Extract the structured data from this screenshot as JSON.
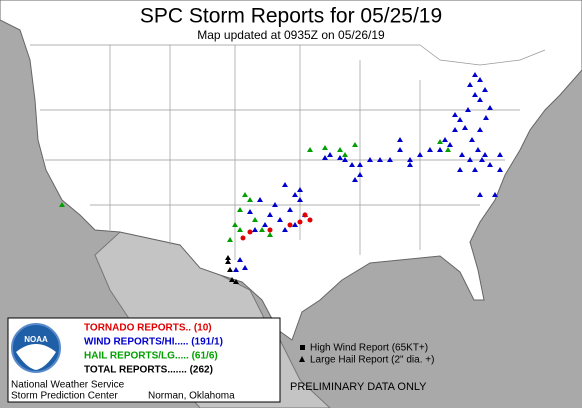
{
  "header": {
    "title": "SPC Storm Reports for 05/25/19",
    "subtitle": "Map updated at 0935Z on 05/26/19"
  },
  "legend": {
    "tornado": "TORNADO REPORTS.. (10)",
    "wind": "WIND REPORTS/HI..... (191/1)",
    "hail": "HAIL REPORTS/LG..... (61/6)",
    "total": "TOTAL REPORTS....... (262)"
  },
  "key": {
    "high_wind": "High Wind Report (65KT+)",
    "large_hail": "Large Hail Report (2\" dia. +)"
  },
  "notice": "PRELIMINARY DATA ONLY",
  "footer": {
    "logo": "NOAA",
    "agency": "National Weather Service",
    "center": "Storm Prediction Center",
    "location": "Norman, Oklahoma"
  }
}
